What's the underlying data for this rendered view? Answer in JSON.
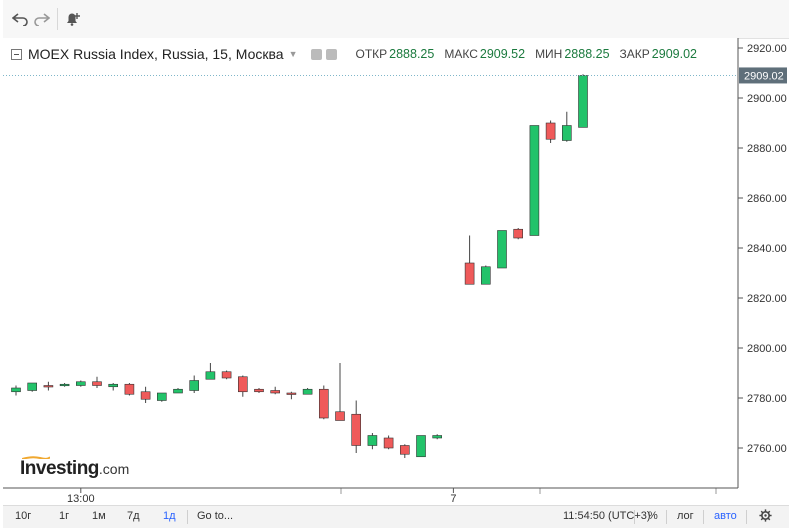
{
  "toolbar": {
    "undo_icon": "undo-arrow-icon",
    "redo_icon": "redo-arrow-icon",
    "alert_icon": "alert-bell-plus-icon"
  },
  "legend": {
    "symbol": "MOEX Russia Index, Russia, 15, Москва",
    "open_label": "ОТКР",
    "open_value": "2888.25",
    "high_label": "МАКС",
    "high_value": "2909.52",
    "low_label": "МИН",
    "low_value": "2888.25",
    "close_label": "ЗАКР",
    "close_value": "2909.02"
  },
  "watermark": {
    "brand": "Investing",
    "domain": ".com"
  },
  "bottom": {
    "ranges": [
      "10г",
      "1г",
      "1м",
      "7д",
      "1д"
    ],
    "active_range": "1д",
    "goto": "Go to...",
    "time": "11:54:50 (UTC+3)",
    "percent": "%",
    "log": "лог",
    "auto": "авто"
  },
  "colors": {
    "up": "#22c36a",
    "down": "#ef5a5a",
    "active": "#2962ff",
    "price_label_bg": "#5f6f7a"
  },
  "chart_data": {
    "type": "candlestick",
    "title": "MOEX Russia Index, Russia, 15, Москва",
    "ylim": [
      2744,
      2924
    ],
    "y_ticks": [
      2760,
      2780,
      2800,
      2820,
      2840,
      2860,
      2880,
      2900,
      2920
    ],
    "y_tick_labels": [
      "2760.00",
      "2780.00",
      "2800.00",
      "2820.00",
      "2840.00",
      "2860.00",
      "2880.00",
      "2900.00",
      "2920.00"
    ],
    "x_labels": [
      {
        "index": 4,
        "label": "13:00"
      },
      {
        "index": 27,
        "label": "7"
      }
    ],
    "last_price": 2909.02,
    "last_price_label": "2909.02",
    "candles": [
      {
        "o": 2782.5,
        "h": 2785.0,
        "l": 2781.0,
        "c": 2784.0
      },
      {
        "o": 2783.0,
        "h": 2786.0,
        "l": 2782.5,
        "c": 2786.0
      },
      {
        "o": 2785.0,
        "h": 2786.5,
        "l": 2783.0,
        "c": 2784.5
      },
      {
        "o": 2785.0,
        "h": 2786.0,
        "l": 2784.5,
        "c": 2785.5
      },
      {
        "o": 2785.0,
        "h": 2787.0,
        "l": 2784.5,
        "c": 2786.5
      },
      {
        "o": 2786.5,
        "h": 2788.5,
        "l": 2784.0,
        "c": 2785.0
      },
      {
        "o": 2784.5,
        "h": 2786.0,
        "l": 2783.0,
        "c": 2785.5
      },
      {
        "o": 2785.5,
        "h": 2786.0,
        "l": 2781.0,
        "c": 2781.5
      },
      {
        "o": 2782.5,
        "h": 2784.5,
        "l": 2778.0,
        "c": 2779.5
      },
      {
        "o": 2779.0,
        "h": 2782.0,
        "l": 2778.5,
        "c": 2782.0
      },
      {
        "o": 2782.0,
        "h": 2784.0,
        "l": 2782.0,
        "c": 2783.5
      },
      {
        "o": 2783.0,
        "h": 2789.0,
        "l": 2782.0,
        "c": 2787.0
      },
      {
        "o": 2787.5,
        "h": 2794.0,
        "l": 2787.5,
        "c": 2790.5
      },
      {
        "o": 2790.5,
        "h": 2791.0,
        "l": 2787.5,
        "c": 2788.0
      },
      {
        "o": 2788.5,
        "h": 2789.0,
        "l": 2780.5,
        "c": 2782.5
      },
      {
        "o": 2783.5,
        "h": 2784.0,
        "l": 2782.0,
        "c": 2782.5
      },
      {
        "o": 2783.0,
        "h": 2784.5,
        "l": 2781.5,
        "c": 2782.0
      },
      {
        "o": 2782.0,
        "h": 2782.5,
        "l": 2779.5,
        "c": 2781.5
      },
      {
        "o": 2781.5,
        "h": 2784.0,
        "l": 2781.5,
        "c": 2783.5
      },
      {
        "o": 2783.5,
        "h": 2785.0,
        "l": 2771.5,
        "c": 2772.0
      },
      {
        "o": 2774.5,
        "h": 2794.0,
        "l": 2771.0,
        "c": 2771.0
      },
      {
        "o": 2773.5,
        "h": 2779.0,
        "l": 2758.0,
        "c": 2761.0
      },
      {
        "o": 2761.0,
        "h": 2766.0,
        "l": 2759.5,
        "c": 2765.0
      },
      {
        "o": 2764.0,
        "h": 2765.0,
        "l": 2759.5,
        "c": 2760.0
      },
      {
        "o": 2761.0,
        "h": 2761.5,
        "l": 2756.0,
        "c": 2757.5
      },
      {
        "o": 2756.5,
        "h": 2765.0,
        "l": 2756.5,
        "c": 2765.0
      },
      {
        "o": 2764.0,
        "h": 2765.5,
        "l": 2763.5,
        "c": 2765.0
      },
      null,
      {
        "o": 2834.0,
        "h": 2845.0,
        "l": 2825.5,
        "c": 2825.5
      },
      {
        "o": 2825.5,
        "h": 2833.0,
        "l": 2825.5,
        "c": 2832.5
      },
      {
        "o": 2832.0,
        "h": 2847.0,
        "l": 2832.0,
        "c": 2847.0
      },
      {
        "o": 2847.5,
        "h": 2848.0,
        "l": 2843.5,
        "c": 2844.0
      },
      {
        "o": 2845.0,
        "h": 2889.0,
        "l": 2845.0,
        "c": 2889.0
      },
      {
        "o": 2890.0,
        "h": 2891.0,
        "l": 2882.0,
        "c": 2883.5
      },
      {
        "o": 2883.0,
        "h": 2894.5,
        "l": 2882.5,
        "c": 2889.0
      },
      {
        "o": 2888.25,
        "h": 2909.52,
        "l": 2888.25,
        "c": 2909.02
      }
    ]
  }
}
